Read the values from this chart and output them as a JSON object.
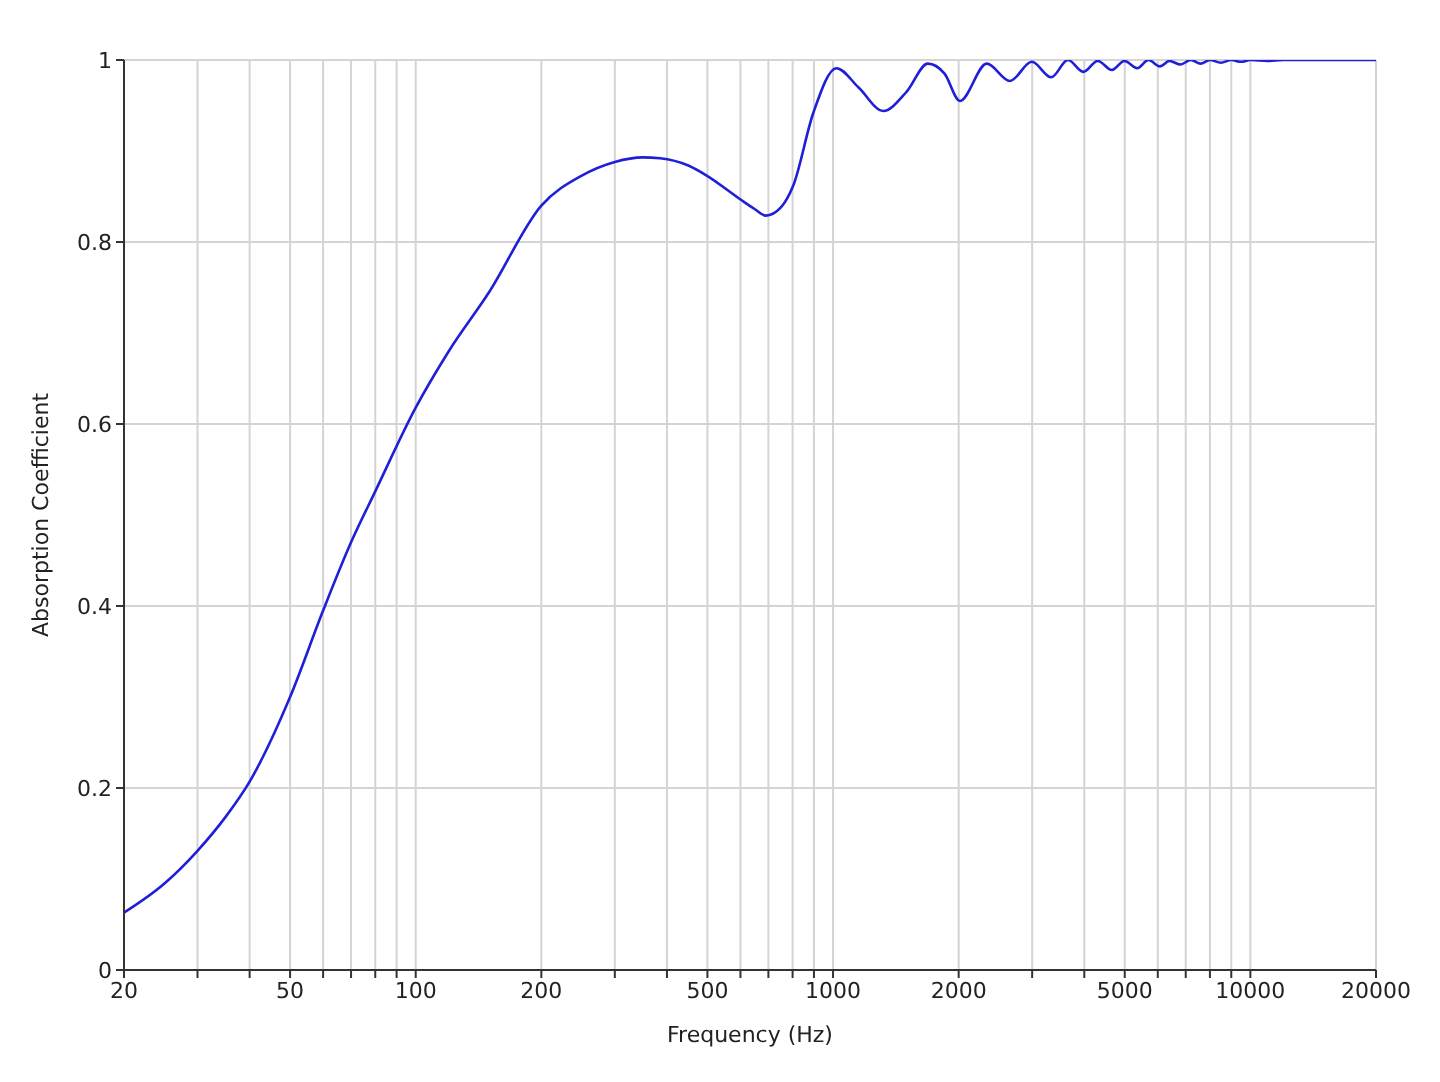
{
  "chart_data": {
    "type": "line",
    "xlabel": "Frequency (Hz)",
    "ylabel": "Absorption Coefficient",
    "x": [
      20,
      25,
      30,
      35,
      40,
      50,
      60,
      70,
      80,
      100,
      120,
      150,
      200,
      250,
      300,
      350,
      385,
      450,
      498,
      599,
      650,
      690,
      750,
      803,
      897,
      1019,
      1150,
      1319,
      1500,
      1687,
      1850,
      2014,
      2335,
      2654,
      2994,
      3333,
      3655,
      3977,
      4309,
      4660,
      4990,
      5356,
      5700,
      6070,
      6400,
      6800,
      7200,
      7600,
      8000,
      8500,
      9000,
      9500,
      10000,
      11000,
      12000,
      15000,
      20000
    ],
    "series": [
      {
        "color": "#1f1fd8",
        "values": [
          0.063,
          0.095,
          0.131,
          0.168,
          0.207,
          0.3,
          0.395,
          0.47,
          0.526,
          0.618,
          0.68,
          0.745,
          0.84,
          0.873,
          0.888,
          0.893,
          0.892,
          0.884,
          0.873,
          0.847,
          0.836,
          0.829,
          0.838,
          0.862,
          0.942,
          0.991,
          0.97,
          0.944,
          0.965,
          0.996,
          0.985,
          0.955,
          0.996,
          0.977,
          0.998,
          0.981,
          1.0,
          0.987,
          0.999,
          0.989,
          0.999,
          0.991,
          1.0,
          0.993,
          0.999,
          0.995,
          1.0,
          0.996,
          1.0,
          0.997,
          1.0,
          0.998,
          1.0,
          0.999,
          1.0,
          1.0,
          1.0
        ]
      }
    ],
    "log": "x",
    "xlim": [
      20,
      20000
    ],
    "xticks": [
      20,
      {
        "value": 30,
        "label": null
      },
      {
        "value": 40,
        "label": null
      },
      50,
      {
        "value": 60,
        "label": null
      },
      {
        "value": 70,
        "label": null
      },
      {
        "value": 80,
        "label": null
      },
      {
        "value": 90,
        "label": null
      },
      100,
      200,
      {
        "value": 300,
        "label": null
      },
      {
        "value": 400,
        "label": null
      },
      500,
      {
        "value": 600,
        "label": null
      },
      {
        "value": 700,
        "label": null
      },
      {
        "value": 800,
        "label": null
      },
      {
        "value": 900,
        "label": null
      },
      1000,
      2000,
      {
        "value": 3000,
        "label": null
      },
      {
        "value": 4000,
        "label": null
      },
      5000,
      {
        "value": 6000,
        "label": null
      },
      {
        "value": 7000,
        "label": null
      },
      {
        "value": 8000,
        "label": null
      },
      {
        "value": 9000,
        "label": null
      },
      10000,
      20000
    ],
    "ylim": [
      0,
      1
    ],
    "yticks": [
      0,
      0.2,
      0.4,
      0.6,
      0.8,
      1
    ],
    "grid": true,
    "marker": "none",
    "line_style": "solid"
  }
}
